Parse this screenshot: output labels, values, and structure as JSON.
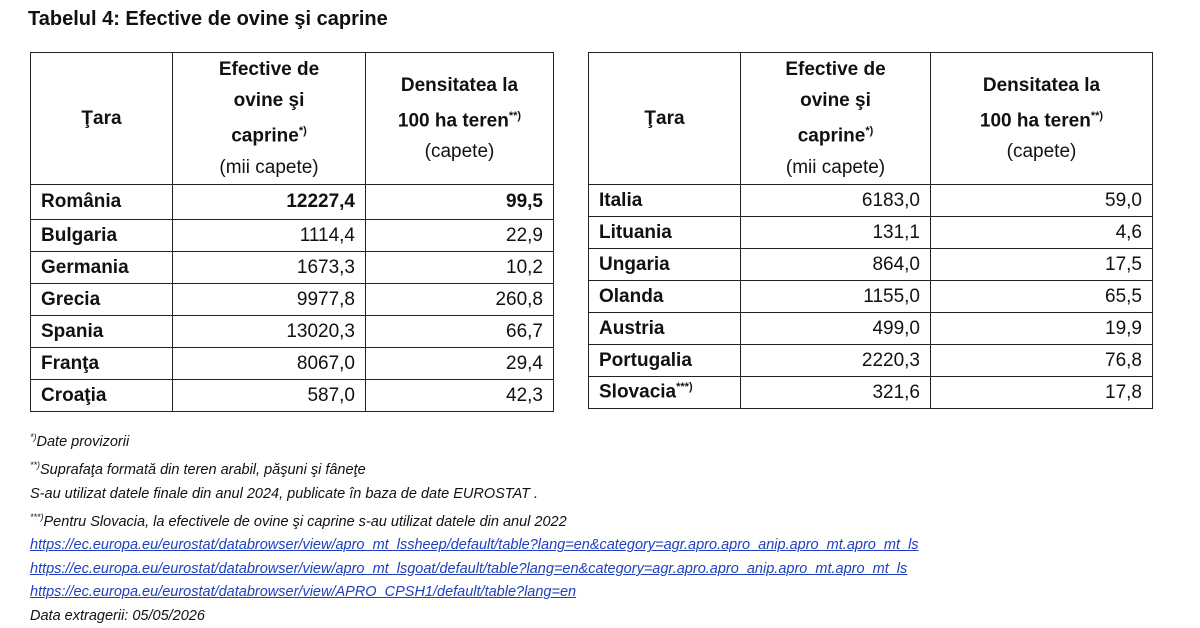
{
  "title": "Tabelul 4: Efective de ovine şi caprine",
  "tables": [
    {
      "header": {
        "country": "Ţara",
        "headcount": {
          "text": "Efective de ovine şi caprine",
          "mark": "*)",
          "unit": "(mii capete)"
        },
        "density": {
          "text": "Densitatea la 100 ha teren",
          "mark": "**)",
          "unit": "(capete)"
        }
      },
      "rows": [
        {
          "country": "România",
          "headcount": "12227,4",
          "density": "99,5",
          "bold": true
        },
        {
          "country": "Bulgaria",
          "headcount": "1114,4",
          "density": "22,9"
        },
        {
          "country": "Germania",
          "headcount": "1673,3",
          "density": "10,2"
        },
        {
          "country": "Grecia",
          "headcount": "9977,8",
          "density": "260,8"
        },
        {
          "country": "Spania",
          "headcount": "13020,3",
          "density": "66,7"
        },
        {
          "country": "Franţa",
          "headcount": "8067,0",
          "density": "29,4"
        },
        {
          "country": "Croaţia",
          "headcount": "587,0",
          "density": "42,3"
        }
      ]
    },
    {
      "header": {
        "country": "Ţara",
        "headcount": {
          "text": "Efective de ovine şi caprine",
          "mark": "*)",
          "unit": "(mii capete)"
        },
        "density": {
          "text": "Densitatea la 100 ha teren",
          "mark": "**)",
          "unit": "(capete)"
        }
      },
      "rows": [
        {
          "country": "Italia",
          "headcount": "6183,0",
          "density": "59,0"
        },
        {
          "country": "Lituania",
          "headcount": "131,1",
          "density": "4,6"
        },
        {
          "country": "Ungaria",
          "headcount": "864,0",
          "density": "17,5"
        },
        {
          "country": "Olanda",
          "headcount": "1155,0",
          "density": "65,5"
        },
        {
          "country": "Austria",
          "headcount": "499,0",
          "density": "19,9"
        },
        {
          "country": "Portugalia",
          "headcount": "2220,3",
          "density": "76,8"
        },
        {
          "country": "Slovacia",
          "mark": "***)",
          "headcount": "321,6",
          "density": "17,8"
        }
      ]
    }
  ],
  "notes": [
    {
      "mark": "*)",
      "text": "Date provizorii"
    },
    {
      "mark": "**)",
      "text": "Suprafaţa formată din teren arabil, păşuni şi fâneţe"
    },
    {
      "text": "S-au utilizat datele finale din anul 2024,  publicate în baza de date EUROSTAT ."
    },
    {
      "mark": "***)",
      "text": "Pentru Slovacia, la efectivele de ovine şi caprine s-au utilizat datele din anul 2022"
    }
  ],
  "links": [
    "https://ec.europa.eu/eurostat/databrowser/view/apro_mt_lssheep/default/table?lang=en&category=agr.apro.apro_anip.apro_mt.apro_mt_ls",
    "https://ec.europa.eu/eurostat/databrowser/view/apro_mt_lsgoat/default/table?lang=en&category=agr.apro.apro_anip.apro_mt.apro_mt_ls",
    "https://ec.europa.eu/eurostat/databrowser/view/APRO_CPSH1/default/table?lang=en"
  ],
  "extraction_date": "Data extragerii: 05/05/2026"
}
